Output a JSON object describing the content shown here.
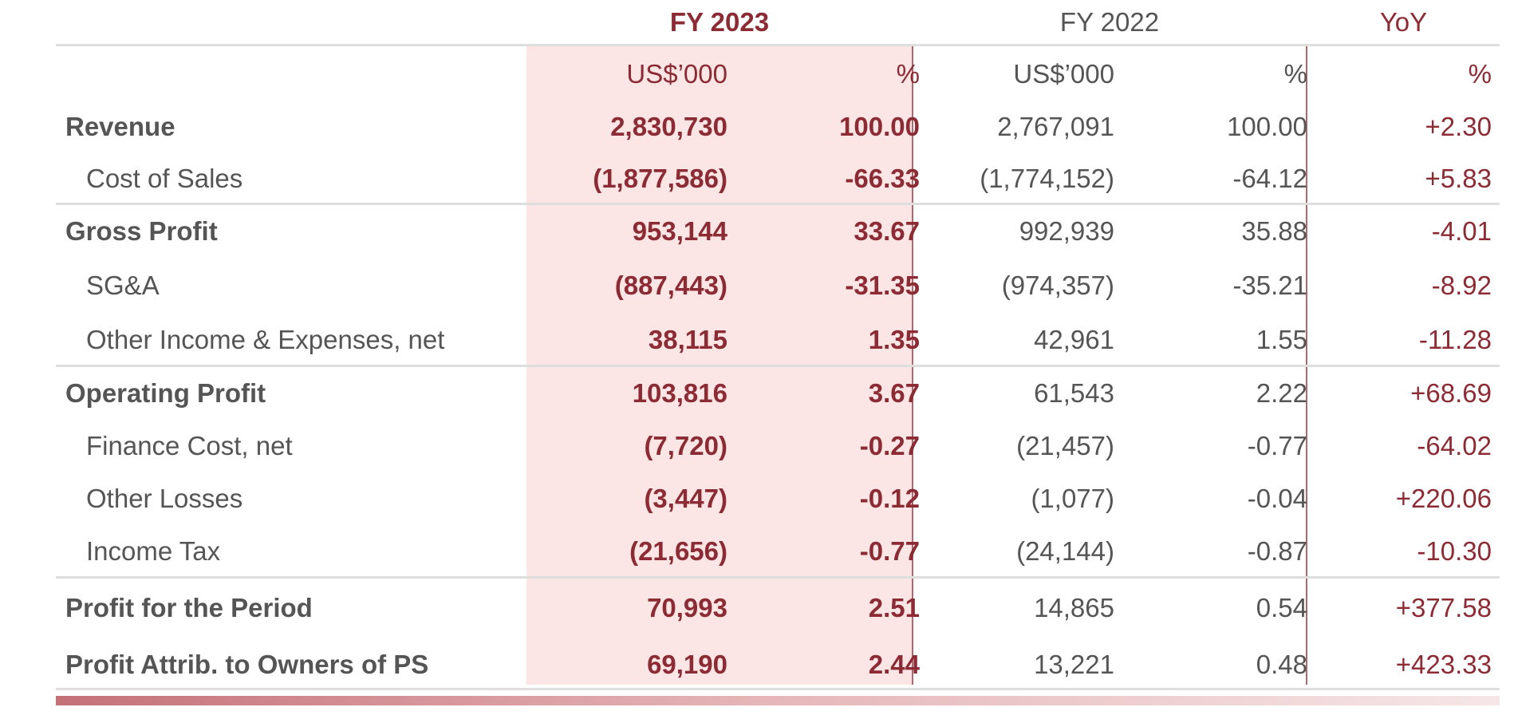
{
  "table": {
    "group_headers": {
      "fy2023": "FY 2023",
      "fy2022": "FY 2022",
      "yoy": "YoY"
    },
    "unit_headers": {
      "fy2023_amount": "US$’000",
      "fy2023_pct": "%",
      "fy2022_amount": "US$’000",
      "fy2022_pct": "%",
      "yoy_pct": "%"
    },
    "rows": [
      {
        "label": "Revenue",
        "fy2023_amount": "2,830,730",
        "fy2023_pct": "100.00",
        "fy2022_amount": "2,767,091",
        "fy2022_pct": "100.00",
        "yoy": "+2.30"
      },
      {
        "label": "Cost of Sales",
        "fy2023_amount": "(1,877,586)",
        "fy2023_pct": "-66.33",
        "fy2022_amount": "(1,774,152)",
        "fy2022_pct": "-64.12",
        "yoy": "+5.83"
      },
      {
        "label": "Gross Profit",
        "fy2023_amount": "953,144",
        "fy2023_pct": "33.67",
        "fy2022_amount": "992,939",
        "fy2022_pct": "35.88",
        "yoy": "-4.01"
      },
      {
        "label": "SG&A",
        "fy2023_amount": "(887,443)",
        "fy2023_pct": "-31.35",
        "fy2022_amount": "(974,357)",
        "fy2022_pct": "-35.21",
        "yoy": "-8.92"
      },
      {
        "label": "Other Income & Expenses, net",
        "fy2023_amount": "38,115",
        "fy2023_pct": "1.35",
        "fy2022_amount": "42,961",
        "fy2022_pct": "1.55",
        "yoy": "-11.28"
      },
      {
        "label": "Operating Profit",
        "fy2023_amount": "103,816",
        "fy2023_pct": "3.67",
        "fy2022_amount": "61,543",
        "fy2022_pct": "2.22",
        "yoy": "+68.69"
      },
      {
        "label": "Finance Cost, net",
        "fy2023_amount": "(7,720)",
        "fy2023_pct": "-0.27",
        "fy2022_amount": "(21,457)",
        "fy2022_pct": "-0.77",
        "yoy": "-64.02"
      },
      {
        "label": "Other Losses",
        "fy2023_amount": "(3,447)",
        "fy2023_pct": "-0.12",
        "fy2022_amount": "(1,077)",
        "fy2022_pct": "-0.04",
        "yoy": "+220.06"
      },
      {
        "label": "Income Tax",
        "fy2023_amount": "(21,656)",
        "fy2023_pct": "-0.77",
        "fy2022_amount": "(24,144)",
        "fy2022_pct": "-0.87",
        "yoy": "-10.30"
      },
      {
        "label": "Profit for the Period",
        "fy2023_amount": "70,993",
        "fy2023_pct": "2.51",
        "fy2022_amount": "14,865",
        "fy2022_pct": "0.54",
        "yoy": "+377.58"
      },
      {
        "label": "Profit Attrib. to Owners of PS",
        "fy2023_amount": "69,190",
        "fy2023_pct": "2.44",
        "fy2022_amount": "13,221",
        "fy2022_pct": "0.48",
        "yoy": "+423.33"
      }
    ]
  },
  "colors": {
    "accent": "#8c2b33",
    "highlight": "#fbe5e5",
    "text": "#555555",
    "divider": "#b0676d"
  }
}
